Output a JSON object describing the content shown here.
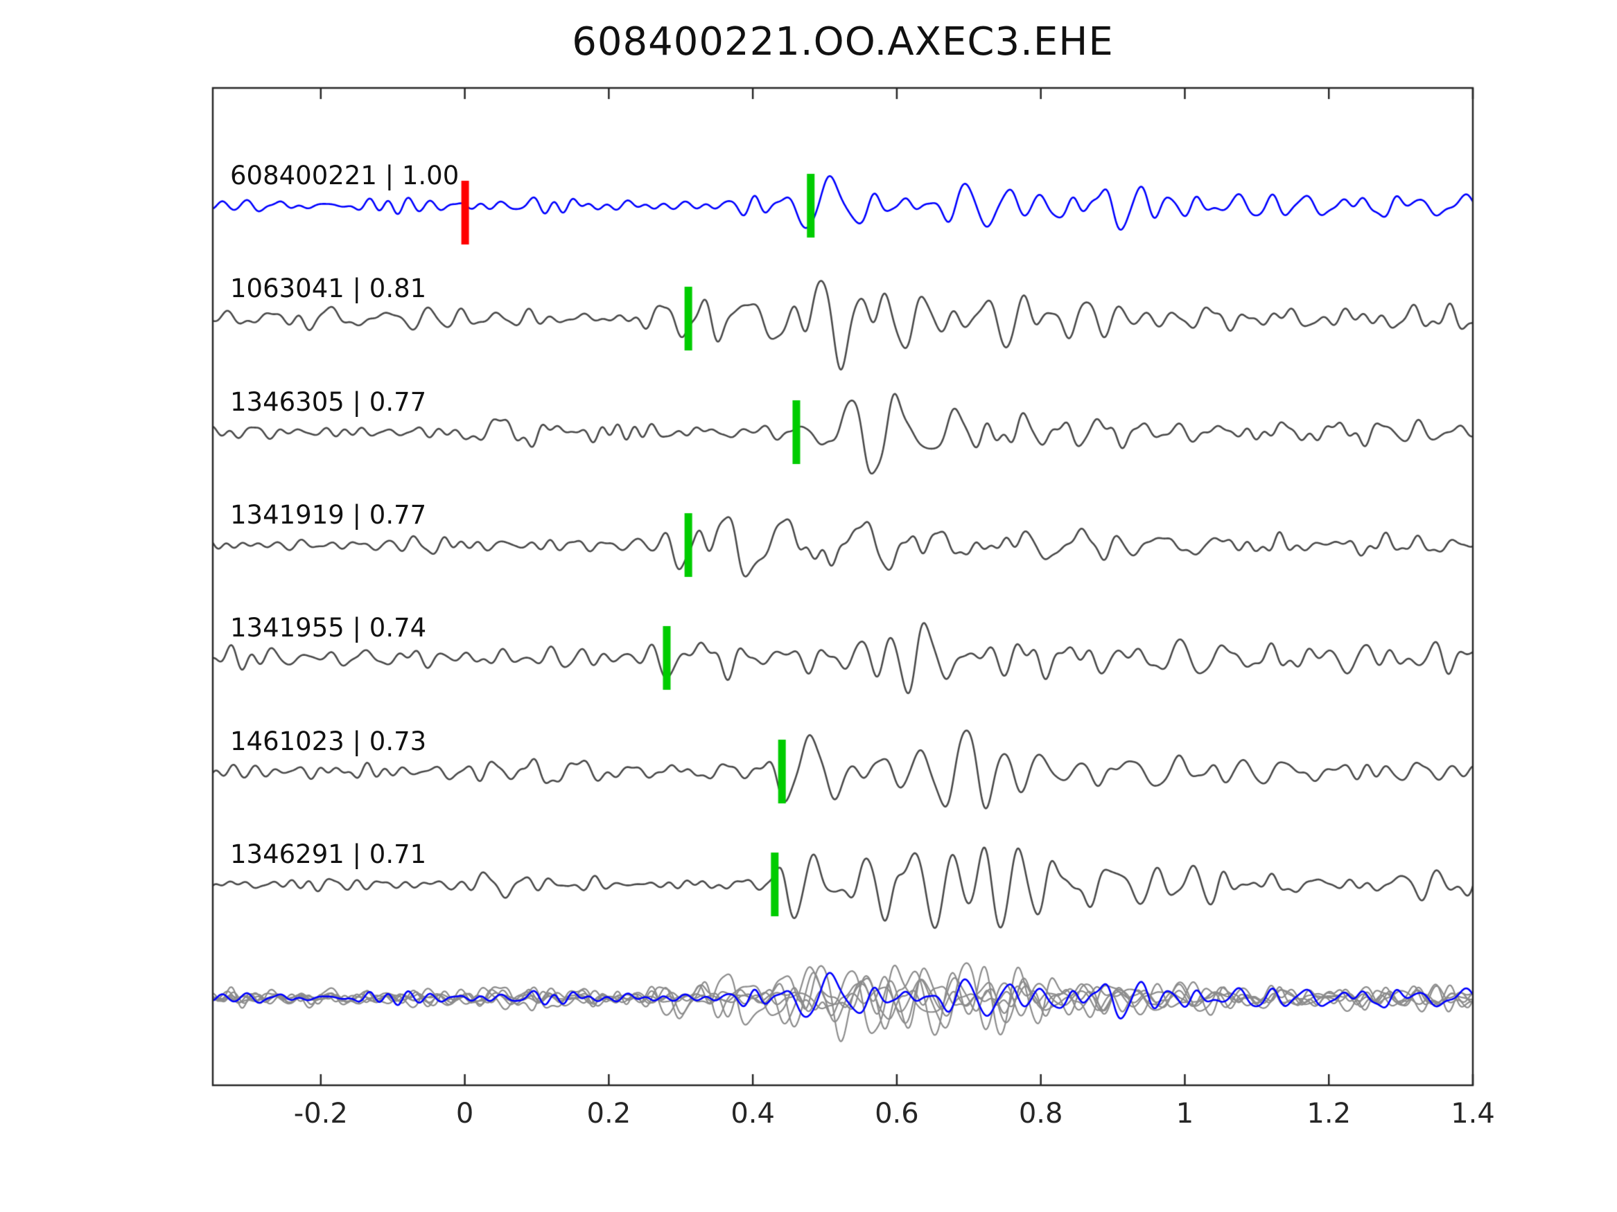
{
  "chart_data": {
    "type": "line",
    "title": "608400221.OO.AXEC3.EHE",
    "subtitle": "",
    "xlabel": "",
    "ylabel": "",
    "xlim": [
      -0.35,
      1.4
    ],
    "x_ticks": [
      -0.2,
      0,
      0.2,
      0.4,
      0.6,
      0.8,
      1,
      1.2,
      1.4
    ],
    "x_tick_labels": [
      "-0.2",
      "0",
      "0.2",
      "0.4",
      "0.6",
      "0.8",
      "1",
      "1.2",
      "1.4"
    ],
    "grid": false,
    "legend": "none",
    "label_separator": " | ",
    "marker_colors": {
      "pick": "#00cc00",
      "reference": "#ff0000"
    },
    "colors": {
      "reference_trace": "#0000ff",
      "match_trace": "#4a4a4a",
      "overlay_gray": "#8c8c8c",
      "overlay_blue": "#0000ff",
      "axis": "#262626",
      "background": "#ffffff"
    },
    "traces": [
      {
        "event_id": "608400221",
        "similarity": "1.00",
        "label": "608400221 | 1.00",
        "role": "reference",
        "color": "#0000ff",
        "ref_marker_x": 0.0,
        "pick_marker_x": 0.48,
        "waveform": {
          "seed": 11,
          "base": 8,
          "bursts": [
            {
              "t": 0.035,
              "amp": 7,
              "rise": 0.02,
              "decay": 0.3
            },
            {
              "t": 0.485,
              "amp": 78,
              "rise": 0.015,
              "decay": 0.2
            },
            {
              "t": 0.56,
              "amp": 26,
              "rise": 0.05,
              "decay": 1.1
            }
          ]
        }
      },
      {
        "event_id": "1063041",
        "similarity": "0.81",
        "label": "1063041 | 0.81",
        "role": "match",
        "color": "#4a4a4a",
        "ref_marker_x": null,
        "pick_marker_x": 0.31,
        "waveform": {
          "seed": 22,
          "base": 10,
          "bursts": [
            {
              "t": -0.24,
              "amp": 20,
              "rise": 0.03,
              "decay": 0.22
            },
            {
              "t": 0.1,
              "amp": 10,
              "rise": 0.04,
              "decay": 0.3
            },
            {
              "t": 0.305,
              "amp": 62,
              "rise": 0.025,
              "decay": 0.22
            },
            {
              "t": 0.42,
              "amp": 28,
              "rise": 0.06,
              "decay": 0.9
            }
          ]
        }
      },
      {
        "event_id": "1346305",
        "similarity": "0.77",
        "label": "1346305 | 0.77",
        "role": "match",
        "color": "#4a4a4a",
        "ref_marker_x": null,
        "pick_marker_x": 0.46,
        "waveform": {
          "seed": 33,
          "base": 9,
          "bursts": [
            {
              "t": 0.005,
              "amp": 30,
              "rise": 0.015,
              "decay": 0.14
            },
            {
              "t": 0.17,
              "amp": 10,
              "rise": 0.05,
              "decay": 0.3
            },
            {
              "t": 0.46,
              "amp": 68,
              "rise": 0.025,
              "decay": 0.24
            },
            {
              "t": 0.56,
              "amp": 26,
              "rise": 0.06,
              "decay": 0.9
            }
          ]
        }
      },
      {
        "event_id": "1341919",
        "similarity": "0.77",
        "label": "1341919 | 0.77",
        "role": "match",
        "color": "#4a4a4a",
        "ref_marker_x": null,
        "pick_marker_x": 0.31,
        "waveform": {
          "seed": 44,
          "base": 9,
          "bursts": [
            {
              "t": -0.12,
              "amp": 7,
              "rise": 0.05,
              "decay": 0.4
            },
            {
              "t": 0.3,
              "amp": 68,
              "rise": 0.02,
              "decay": 0.22
            },
            {
              "t": 0.42,
              "amp": 24,
              "rise": 0.06,
              "decay": 1.0
            }
          ]
        }
      },
      {
        "event_id": "1341955",
        "similarity": "0.74",
        "label": "1341955 | 0.74",
        "role": "match",
        "color": "#4a4a4a",
        "ref_marker_x": null,
        "pick_marker_x": 0.28,
        "waveform": {
          "seed": 55,
          "base": 13,
          "bursts": [
            {
              "t": 0.275,
              "amp": 58,
              "rise": 0.02,
              "decay": 0.22
            },
            {
              "t": 0.4,
              "amp": 28,
              "rise": 0.06,
              "decay": 1.3
            }
          ]
        }
      },
      {
        "event_id": "1461023",
        "similarity": "0.73",
        "label": "1461023 | 0.73",
        "role": "match",
        "color": "#4a4a4a",
        "ref_marker_x": null,
        "pick_marker_x": 0.44,
        "waveform": {
          "seed": 66,
          "base": 9,
          "bursts": [
            {
              "t": 0.005,
              "amp": 33,
              "rise": 0.015,
              "decay": 0.12
            },
            {
              "t": 0.16,
              "amp": 12,
              "rise": 0.05,
              "decay": 0.3
            },
            {
              "t": 0.435,
              "amp": 68,
              "rise": 0.025,
              "decay": 0.24
            },
            {
              "t": 0.56,
              "amp": 28,
              "rise": 0.06,
              "decay": 0.9
            }
          ]
        }
      },
      {
        "event_id": "1346291",
        "similarity": "0.71",
        "label": "1346291 | 0.71",
        "role": "match",
        "color": "#4a4a4a",
        "ref_marker_x": null,
        "pick_marker_x": 0.43,
        "waveform": {
          "seed": 77,
          "base": 9,
          "bursts": [
            {
              "t": 0.005,
              "amp": 28,
              "rise": 0.015,
              "decay": 0.12
            },
            {
              "t": 0.43,
              "amp": 72,
              "rise": 0.03,
              "decay": 0.28
            },
            {
              "t": 0.56,
              "amp": 26,
              "rise": 0.06,
              "decay": 0.9
            }
          ]
        }
      }
    ],
    "overlay_row": {
      "description": "all matched traces overlaid in gray with reference trace in blue",
      "gray_color": "#8c8c8c",
      "blue_color": "#0000ff",
      "scale": 0.85
    }
  }
}
